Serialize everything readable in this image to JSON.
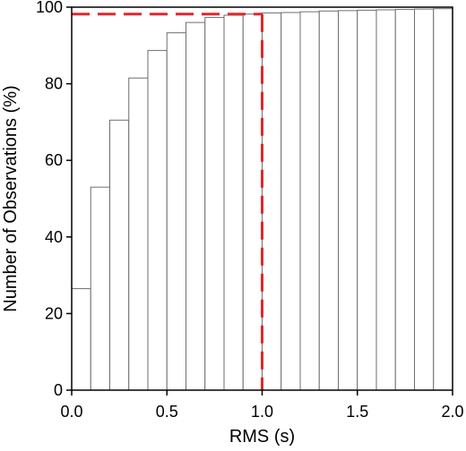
{
  "chart_data": {
    "type": "bar",
    "subtype": "cumulative-histogram",
    "xlabel": "RMS (s)",
    "ylabel": "Number of Observations (%)",
    "xlim": [
      0.0,
      2.0
    ],
    "ylim": [
      0,
      100
    ],
    "bin_width": 0.1,
    "x_ticks": [
      0.0,
      0.5,
      1.0,
      1.5,
      2.0
    ],
    "x_tick_labels": [
      "0.0",
      "0.5",
      "1.0",
      "1.5",
      "2.0"
    ],
    "y_ticks": [
      0,
      20,
      40,
      60,
      80,
      100
    ],
    "y_tick_labels": [
      "0",
      "20",
      "40",
      "60",
      "80",
      "100"
    ],
    "bins": [
      {
        "x0": 0.0,
        "x1": 0.1,
        "value": 26.5
      },
      {
        "x0": 0.1,
        "x1": 0.2,
        "value": 53.0
      },
      {
        "x0": 0.2,
        "x1": 0.3,
        "value": 70.5
      },
      {
        "x0": 0.3,
        "x1": 0.4,
        "value": 81.5
      },
      {
        "x0": 0.4,
        "x1": 0.5,
        "value": 88.7
      },
      {
        "x0": 0.5,
        "x1": 0.6,
        "value": 93.3
      },
      {
        "x0": 0.6,
        "x1": 0.7,
        "value": 96.0
      },
      {
        "x0": 0.7,
        "x1": 0.8,
        "value": 97.3
      },
      {
        "x0": 0.8,
        "x1": 0.9,
        "value": 97.9
      },
      {
        "x0": 0.9,
        "x1": 1.0,
        "value": 98.2
      },
      {
        "x0": 1.0,
        "x1": 1.1,
        "value": 98.5
      },
      {
        "x0": 1.1,
        "x1": 1.2,
        "value": 98.6
      },
      {
        "x0": 1.2,
        "x1": 1.3,
        "value": 98.8
      },
      {
        "x0": 1.3,
        "x1": 1.4,
        "value": 99.0
      },
      {
        "x0": 1.4,
        "x1": 1.5,
        "value": 99.1
      },
      {
        "x0": 1.5,
        "x1": 1.6,
        "value": 99.2
      },
      {
        "x0": 1.6,
        "x1": 1.7,
        "value": 99.3
      },
      {
        "x0": 1.7,
        "x1": 1.8,
        "value": 99.4
      },
      {
        "x0": 1.8,
        "x1": 1.9,
        "value": 99.5
      },
      {
        "x0": 1.9,
        "x1": 2.0,
        "value": 99.6
      }
    ],
    "reference_lines": {
      "color": "#e0272c",
      "style": "dashed",
      "horizontal_y": 98.2,
      "vertical_x": 1.0
    },
    "bar_fill": "#ffffff",
    "bar_stroke": "#6e6e6e",
    "grid": false,
    "legend": "none"
  }
}
